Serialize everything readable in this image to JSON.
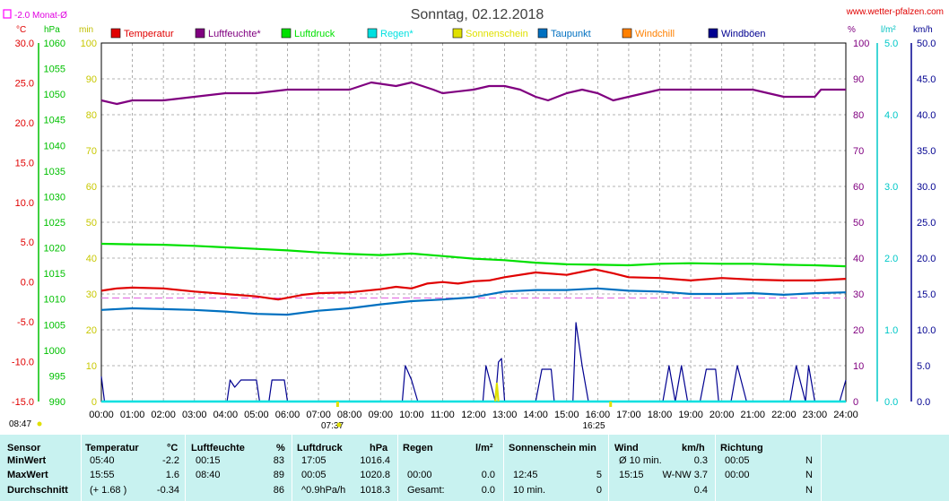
{
  "title": "Sonntag, 02.12.2018",
  "site": "www.wetter-pfalzen.com",
  "monthly_avg_label": "-2.0 Monat-Ø",
  "units": {
    "temp": "°C",
    "pressure": "hPa",
    "minutes": "min",
    "percent": "%",
    "rain": "l/m²",
    "wind": "km/h"
  },
  "legend": [
    {
      "label": "Temperatur",
      "color": "#e00000"
    },
    {
      "label": "Luftfeuchte*",
      "color": "#800080"
    },
    {
      "label": "Luftdruck",
      "color": "#00e000"
    },
    {
      "label": "Regen*",
      "color": "#00e0e0"
    },
    {
      "label": "Sonnenschein",
      "color": "#e0e000"
    },
    {
      "label": "Taupunkt",
      "color": "#0070c0"
    },
    {
      "label": "Windchill",
      "color": "#ff8000"
    },
    {
      "label": "Windböen",
      "color": "#000090"
    }
  ],
  "sun": {
    "rise": "07:37",
    "set": "16:25",
    "corner": "08:47"
  },
  "chart_data": {
    "type": "line",
    "title": "Sonntag, 02.12.2018",
    "x_ticks": [
      "00:00",
      "01:00",
      "02:00",
      "03:00",
      "04:00",
      "05:00",
      "06:00",
      "07:00",
      "08:00",
      "09:00",
      "10:00",
      "11:00",
      "12:00",
      "13:00",
      "14:00",
      "15:00",
      "16:00",
      "17:00",
      "18:00",
      "19:00",
      "20:00",
      "21:00",
      "22:00",
      "23:00",
      "24:00"
    ],
    "axes": {
      "temp": {
        "label": "°C",
        "range": [
          -15,
          30
        ],
        "ticks": [
          "30.0",
          "25.0",
          "20.0",
          "15.0",
          "10.0",
          "5.0",
          "0.0",
          "-5.0",
          "-10.0",
          "-15.0"
        ]
      },
      "pressure": {
        "label": "hPa",
        "range": [
          990,
          1060
        ],
        "ticks": [
          "1060",
          "1055",
          "1050",
          "1045",
          "1040",
          "1035",
          "1030",
          "1025",
          "1020",
          "1015",
          "1010",
          "1005",
          "1000",
          "995",
          "990"
        ]
      },
      "minutes": {
        "label": "min",
        "range": [
          0,
          100
        ],
        "ticks": [
          "100",
          "90",
          "80",
          "70",
          "60",
          "50",
          "40",
          "30",
          "20",
          "10",
          "0"
        ]
      },
      "percent": {
        "label": "%",
        "range": [
          0,
          100
        ],
        "ticks": [
          "100",
          "90",
          "80",
          "70",
          "60",
          "50",
          "40",
          "30",
          "20",
          "10",
          "0"
        ]
      },
      "rain": {
        "label": "l/m²",
        "range": [
          0,
          5
        ],
        "ticks": [
          "5.0",
          "4.0",
          "3.0",
          "2.0",
          "1.0",
          "0.0"
        ]
      },
      "wind": {
        "label": "km/h",
        "range": [
          0,
          50
        ],
        "ticks": [
          "50.0",
          "45.0",
          "40.0",
          "35.0",
          "30.0",
          "25.0",
          "20.0",
          "15.0",
          "10.0",
          "5.0",
          "0.0"
        ]
      }
    },
    "monthly_avg_temp": -2.0,
    "grid": true,
    "series": [
      {
        "name": "Temperatur",
        "axis": "temp",
        "color": "#e00000",
        "points": [
          [
            0,
            -1.1
          ],
          [
            0.5,
            -0.8
          ],
          [
            1,
            -0.7
          ],
          [
            2,
            -0.8
          ],
          [
            3,
            -1.2
          ],
          [
            4,
            -1.5
          ],
          [
            5,
            -1.8
          ],
          [
            5.7,
            -2.2
          ],
          [
            6.5,
            -1.6
          ],
          [
            7,
            -1.4
          ],
          [
            8,
            -1.3
          ],
          [
            9,
            -0.9
          ],
          [
            9.5,
            -0.6
          ],
          [
            10,
            -0.8
          ],
          [
            10.5,
            -0.2
          ],
          [
            11,
            0.0
          ],
          [
            11.5,
            -0.2
          ],
          [
            12,
            0.1
          ],
          [
            12.5,
            0.2
          ],
          [
            13,
            0.6
          ],
          [
            14,
            1.2
          ],
          [
            15,
            0.9
          ],
          [
            15.9,
            1.6
          ],
          [
            16.5,
            1.1
          ],
          [
            17,
            0.6
          ],
          [
            18,
            0.5
          ],
          [
            19,
            0.2
          ],
          [
            20,
            0.5
          ],
          [
            21,
            0.3
          ],
          [
            22,
            0.2
          ],
          [
            23,
            0.2
          ],
          [
            24,
            0.4
          ]
        ]
      },
      {
        "name": "Luftfeuchte*",
        "axis": "percent",
        "color": "#800080",
        "points": [
          [
            0,
            84
          ],
          [
            0.5,
            83
          ],
          [
            1,
            84
          ],
          [
            2,
            84
          ],
          [
            3,
            85
          ],
          [
            4,
            86
          ],
          [
            5,
            86
          ],
          [
            6,
            87
          ],
          [
            7,
            87
          ],
          [
            8,
            87
          ],
          [
            8.7,
            89
          ],
          [
            9.5,
            88
          ],
          [
            10,
            89
          ],
          [
            10.7,
            87
          ],
          [
            11,
            86
          ],
          [
            12,
            87
          ],
          [
            12.5,
            88
          ],
          [
            13,
            88
          ],
          [
            13.5,
            87
          ],
          [
            14,
            85
          ],
          [
            14.4,
            84
          ],
          [
            15,
            86
          ],
          [
            15.5,
            87
          ],
          [
            16,
            86
          ],
          [
            16.5,
            84
          ],
          [
            17,
            85
          ],
          [
            17.5,
            86
          ],
          [
            18,
            87
          ],
          [
            19,
            87
          ],
          [
            20,
            87
          ],
          [
            21,
            87
          ],
          [
            21.5,
            86
          ],
          [
            22,
            85
          ],
          [
            23,
            85
          ],
          [
            23.2,
            87
          ],
          [
            24,
            87
          ]
        ]
      },
      {
        "name": "Luftdruck",
        "axis": "pressure",
        "color": "#00e000",
        "points": [
          [
            0,
            1020.8
          ],
          [
            1,
            1020.7
          ],
          [
            2,
            1020.6
          ],
          [
            3,
            1020.4
          ],
          [
            4,
            1020.1
          ],
          [
            5,
            1019.8
          ],
          [
            6,
            1019.5
          ],
          [
            7,
            1019.1
          ],
          [
            8,
            1018.8
          ],
          [
            9,
            1018.6
          ],
          [
            10,
            1018.9
          ],
          [
            11,
            1018.4
          ],
          [
            12,
            1017.9
          ],
          [
            13,
            1017.6
          ],
          [
            14,
            1017.1
          ],
          [
            15,
            1016.8
          ],
          [
            16,
            1016.7
          ],
          [
            17,
            1016.6
          ],
          [
            18,
            1016.9
          ],
          [
            19,
            1017.0
          ],
          [
            20,
            1016.9
          ],
          [
            21,
            1016.9
          ],
          [
            22,
            1016.7
          ],
          [
            23,
            1016.6
          ],
          [
            24,
            1016.4
          ]
        ]
      },
      {
        "name": "Taupunkt",
        "axis": "temp",
        "color": "#0070c0",
        "points": [
          [
            0,
            -3.5
          ],
          [
            1,
            -3.3
          ],
          [
            2,
            -3.4
          ],
          [
            3,
            -3.5
          ],
          [
            4,
            -3.7
          ],
          [
            5,
            -4.0
          ],
          [
            6,
            -4.1
          ],
          [
            7,
            -3.6
          ],
          [
            8,
            -3.3
          ],
          [
            9,
            -2.8
          ],
          [
            10,
            -2.4
          ],
          [
            11,
            -2.2
          ],
          [
            12,
            -1.9
          ],
          [
            13,
            -1.2
          ],
          [
            14,
            -1.0
          ],
          [
            15,
            -1.0
          ],
          [
            16,
            -0.8
          ],
          [
            17,
            -1.1
          ],
          [
            18,
            -1.2
          ],
          [
            19,
            -1.5
          ],
          [
            20,
            -1.5
          ],
          [
            21,
            -1.4
          ],
          [
            22,
            -1.6
          ],
          [
            23,
            -1.4
          ],
          [
            24,
            -1.3
          ]
        ]
      },
      {
        "name": "Windböen",
        "axis": "wind",
        "color": "#000090",
        "points": [
          [
            0,
            3.5
          ],
          [
            0.1,
            0
          ],
          [
            4.05,
            0
          ],
          [
            4.15,
            3.0
          ],
          [
            4.3,
            2.0
          ],
          [
            4.5,
            3.0
          ],
          [
            5,
            3.0
          ],
          [
            5.1,
            0
          ],
          [
            5.4,
            0
          ],
          [
            5.5,
            3.0
          ],
          [
            5.9,
            3.0
          ],
          [
            6.0,
            0
          ],
          [
            9.7,
            0
          ],
          [
            9.8,
            5.0
          ],
          [
            10.0,
            3.0
          ],
          [
            10.2,
            0
          ],
          [
            12.3,
            0
          ],
          [
            12.4,
            5.0
          ],
          [
            12.7,
            0
          ],
          [
            12.8,
            5.5
          ],
          [
            12.9,
            6.0
          ],
          [
            13.0,
            0
          ],
          [
            14.0,
            0
          ],
          [
            14.2,
            4.5
          ],
          [
            14.5,
            4.5
          ],
          [
            14.6,
            0
          ],
          [
            15.2,
            0
          ],
          [
            15.3,
            11.0
          ],
          [
            15.5,
            5.0
          ],
          [
            15.7,
            0
          ],
          [
            18.1,
            0
          ],
          [
            18.3,
            5.0
          ],
          [
            18.5,
            0
          ],
          [
            18.7,
            5.0
          ],
          [
            18.9,
            0
          ],
          [
            19.3,
            0
          ],
          [
            19.5,
            4.5
          ],
          [
            19.8,
            4.5
          ],
          [
            19.9,
            0
          ],
          [
            20.3,
            0
          ],
          [
            20.5,
            5.0
          ],
          [
            20.8,
            0
          ],
          [
            22.2,
            0
          ],
          [
            22.4,
            5.0
          ],
          [
            22.7,
            0
          ],
          [
            22.8,
            5.0
          ],
          [
            23.0,
            0
          ],
          [
            23.8,
            0
          ],
          [
            24,
            3.0
          ]
        ]
      },
      {
        "name": "Regen*",
        "axis": "rain",
        "color": "#00e0e0",
        "points": [
          [
            0,
            0
          ],
          [
            24,
            0
          ]
        ]
      },
      {
        "name": "Sonnenschein",
        "axis": "minutes",
        "color": "#e0e000",
        "points": [
          [
            12.7,
            0
          ],
          [
            12.75,
            5
          ],
          [
            12.8,
            0
          ]
        ]
      }
    ]
  },
  "stats": {
    "headers": {
      "sensor": "Sensor",
      "temp": "Temperatur",
      "temp_unit": "°C",
      "hum": "Luftfeuchte",
      "hum_unit": "%",
      "press": "Luftdruck",
      "press_unit": "hPa",
      "rain": "Regen",
      "rain_unit": "l/m²",
      "sun": "Sonnenschein min",
      "wind": "Wind",
      "wind_unit": "km/h",
      "dir": "Richtung"
    },
    "rows": [
      {
        "label": "MinWert",
        "temp_time": "05:40",
        "temp_val": "-2.2",
        "hum_time": "00:15",
        "hum_val": "83",
        "press_time": "17:05",
        "press_val": "1016.4",
        "rain_time": "",
        "rain_val": "",
        "sun_time": "",
        "sun_val": "",
        "wind_time": "Ø 10 min.",
        "wind_val": "0.3",
        "dir_time": "00:05",
        "dir_val": "N"
      },
      {
        "label": "MaxWert",
        "temp_time": "15:55",
        "temp_val": "1.6",
        "hum_time": "08:40",
        "hum_val": "89",
        "press_time": "00:05",
        "press_val": "1020.8",
        "rain_time": "00:00",
        "rain_val": "0.0",
        "sun_time": "12:45",
        "sun_val": "5",
        "wind_time": "15:15",
        "wind_val": "W-NW 3.7",
        "dir_time": "00:00",
        "dir_val": "N"
      },
      {
        "label": "Durchschnitt",
        "temp_time": "(+ 1.68 )",
        "temp_val": "-0.34",
        "hum_time": "",
        "hum_val": "86",
        "press_time": "^0.9hPa/h",
        "press_val": "1018.3",
        "rain_time": "Gesamt:",
        "rain_val": "0.0",
        "sun_time": "10 min.",
        "sun_val": "0",
        "wind_time": "",
        "wind_val": "0.4",
        "dir_time": "",
        "dir_val": "N"
      }
    ]
  }
}
